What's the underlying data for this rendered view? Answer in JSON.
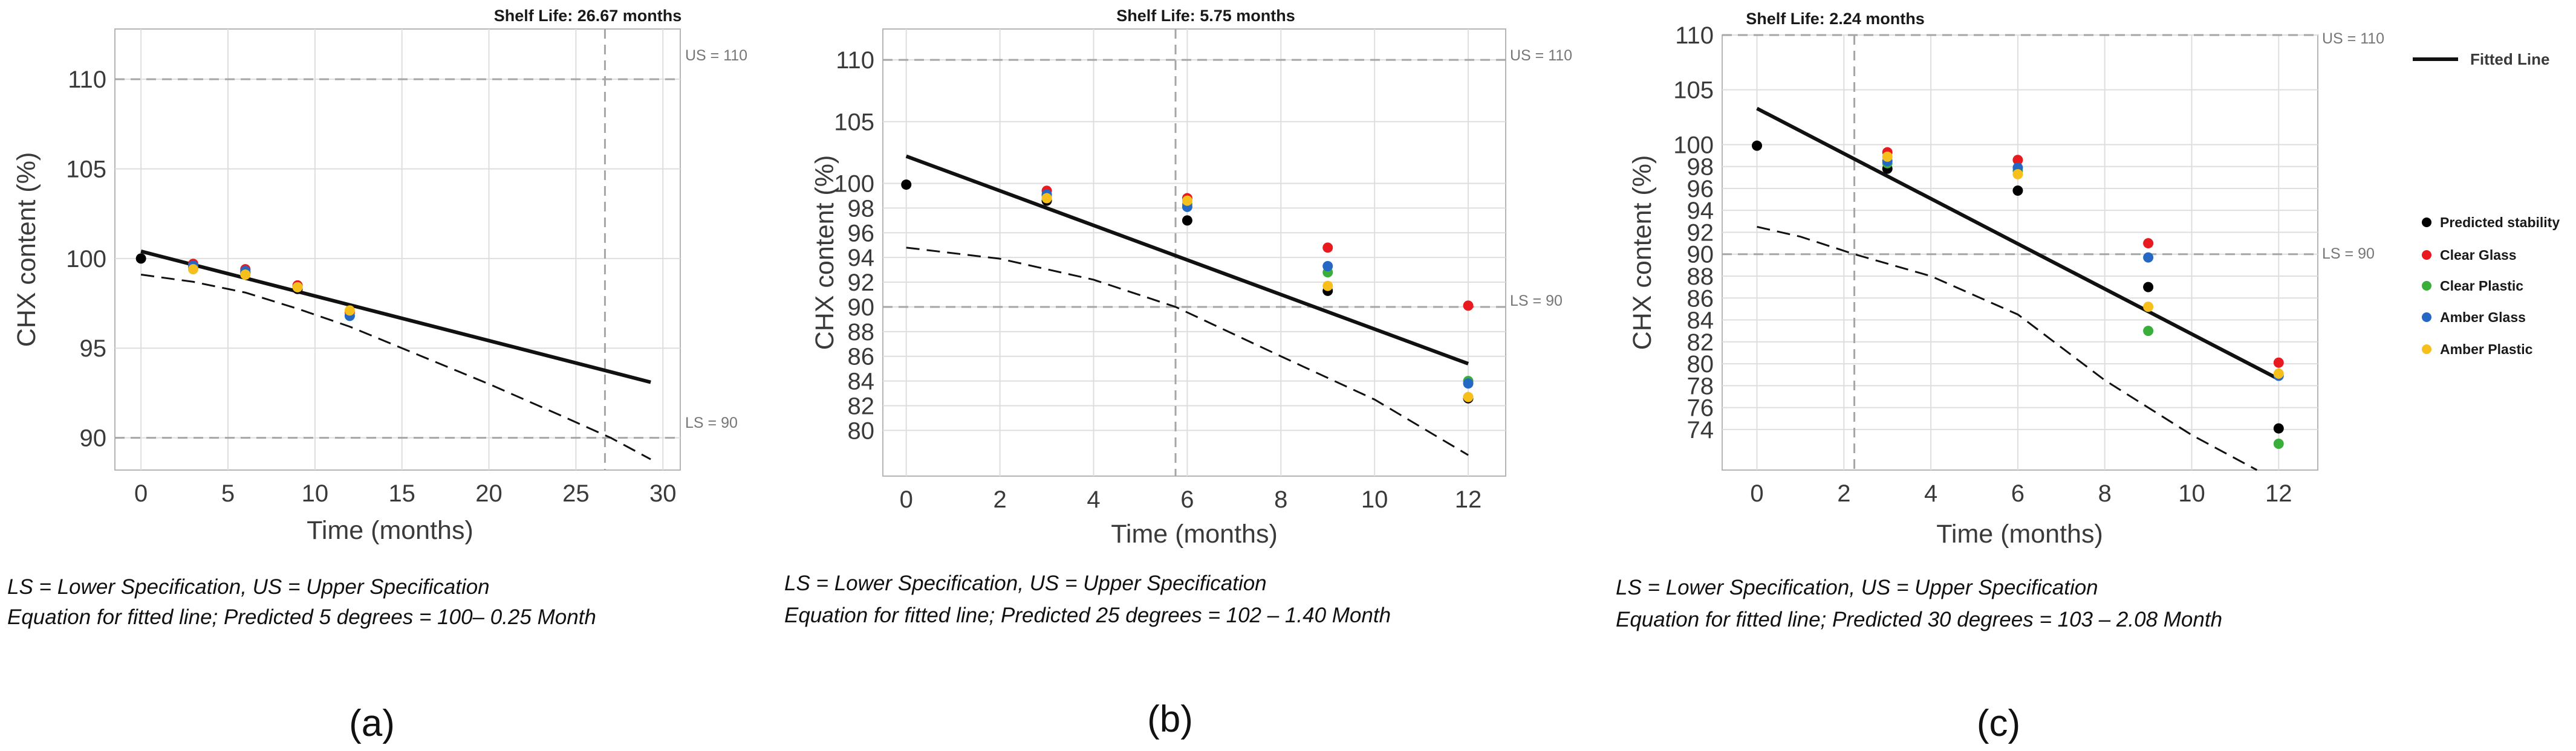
{
  "colors": {
    "predicted_stability": "#000000",
    "clear_glass": "#e8191f",
    "clear_plastic": "#3aae3a",
    "amber_glass": "#2468c4",
    "amber_plastic": "#f6bf1b",
    "grid": "#dedede",
    "spec": "#a6a6a6"
  },
  "legend": {
    "fitted_line": "Fitted Line",
    "items": [
      {
        "key": "predicted_stability",
        "label": "Predicted stability"
      },
      {
        "key": "clear_glass",
        "label": "Clear Glass"
      },
      {
        "key": "clear_plastic",
        "label": "Clear Plastic"
      },
      {
        "key": "amber_glass",
        "label": "Amber Glass"
      },
      {
        "key": "amber_plastic",
        "label": "Amber Plastic"
      }
    ]
  },
  "chart_data": [
    {
      "id": "a",
      "type": "scatter",
      "panel_label": "(a)",
      "title": "Shelf Life: 26.67 months",
      "xlabel": "Time (months)",
      "ylabel": "CHX content (%)",
      "xlim": [
        -1.5,
        31
      ],
      "ylim": [
        88.2,
        112.8
      ],
      "xticks": [
        0,
        5,
        10,
        15,
        20,
        25,
        30
      ],
      "yticks": [
        90,
        95,
        100,
        105,
        110
      ],
      "us_label": "US = 110",
      "ls_label": "LS = 90",
      "us": 110,
      "ls": 90,
      "shelf_life": 26.67,
      "fitted_line": {
        "x": [
          0,
          29.3
        ],
        "y": [
          100.4,
          93.1
        ]
      },
      "confidence_bound": {
        "x": [
          0,
          3,
          6,
          9,
          12,
          16,
          20,
          24,
          27,
          29.3
        ],
        "y": [
          99.1,
          98.7,
          98.1,
          97.2,
          96.2,
          94.6,
          93.0,
          91.3,
          90.0,
          88.8
        ]
      },
      "series": [
        {
          "name": "Predicted stability",
          "key": "predicted_stability",
          "x": [
            0,
            3,
            6,
            9
          ],
          "y": [
            100.0,
            99.5,
            99.2,
            98.3
          ]
        },
        {
          "name": "Clear Glass",
          "key": "clear_glass",
          "x": [
            3,
            6,
            9,
            12
          ],
          "y": [
            99.7,
            99.4,
            98.5,
            97.0
          ]
        },
        {
          "name": "Clear Plastic",
          "key": "clear_plastic",
          "x": [
            3,
            6,
            9,
            12
          ],
          "y": [
            99.5,
            99.2,
            98.4,
            96.8
          ]
        },
        {
          "name": "Amber Glass",
          "key": "amber_glass",
          "x": [
            3,
            6,
            9,
            12
          ],
          "y": [
            99.6,
            99.3,
            98.4,
            96.8
          ]
        },
        {
          "name": "Amber Plastic",
          "key": "amber_plastic",
          "x": [
            3,
            6,
            9,
            12
          ],
          "y": [
            99.4,
            99.1,
            98.4,
            97.1
          ]
        }
      ],
      "caption_line1": "LS = Lower Specification, US = Upper Specification",
      "caption_line2": "Equation for fitted line; Predicted 5 degrees = 100– 0.25 Month"
    },
    {
      "id": "b",
      "type": "scatter",
      "panel_label": "(b)",
      "title": "Shelf Life: 5.75 months",
      "xlabel": "Time (months)",
      "ylabel": "CHX content (%)",
      "xlim": [
        -0.5,
        12.8
      ],
      "ylim": [
        76.3,
        112.5
      ],
      "xticks": [
        0,
        2,
        4,
        6,
        8,
        10,
        12
      ],
      "yticks": [
        80,
        82,
        84,
        86,
        88,
        90,
        92,
        94,
        96,
        98,
        100,
        105,
        110
      ],
      "us_label": "US = 110",
      "ls_label": "LS = 90",
      "us": 110,
      "ls": 90,
      "shelf_life": 5.75,
      "fitted_line": {
        "x": [
          0,
          12
        ],
        "y": [
          102.2,
          85.4
        ]
      },
      "confidence_bound": {
        "x": [
          0,
          2,
          4,
          5.75,
          8,
          10,
          12
        ],
        "y": [
          94.8,
          93.9,
          92.2,
          90.0,
          86.0,
          82.5,
          78.0
        ]
      },
      "series": [
        {
          "name": "Predicted stability",
          "key": "predicted_stability",
          "x": [
            0,
            3,
            6,
            9,
            12
          ],
          "y": [
            99.9,
            98.6,
            97.0,
            91.3,
            82.6
          ]
        },
        {
          "name": "Clear Glass",
          "key": "clear_glass",
          "x": [
            3,
            6,
            9,
            12
          ],
          "y": [
            99.4,
            98.8,
            94.8,
            90.1
          ]
        },
        {
          "name": "Clear Plastic",
          "key": "clear_plastic",
          "x": [
            3,
            6,
            9,
            12
          ],
          "y": [
            99.0,
            98.3,
            92.8,
            84.0
          ]
        },
        {
          "name": "Amber Glass",
          "key": "amber_glass",
          "x": [
            3,
            6,
            9,
            12
          ],
          "y": [
            99.1,
            98.1,
            93.3,
            83.8
          ]
        },
        {
          "name": "Amber Plastic",
          "key": "amber_plastic",
          "x": [
            3,
            6,
            9,
            12
          ],
          "y": [
            98.8,
            98.6,
            91.7,
            82.7
          ]
        }
      ],
      "caption_line1": "LS = Lower Specification, US = Upper Specification",
      "caption_line2": "Equation for fitted line; Predicted 25 degrees = 102 – 1.40 Month"
    },
    {
      "id": "c",
      "type": "scatter",
      "panel_label": "(c)",
      "title": "Shelf Life: 2.24 months",
      "xlabel": "Time (months)",
      "ylabel": "CHX content (%)",
      "xlim": [
        -0.8,
        12.9
      ],
      "ylim": [
        70.3,
        110.0
      ],
      "xticks": [
        0,
        2,
        4,
        6,
        8,
        10,
        12
      ],
      "yticks": [
        74,
        76,
        78,
        80,
        82,
        84,
        86,
        88,
        90,
        92,
        94,
        96,
        98,
        100,
        105,
        110
      ],
      "us_label": "US = 110",
      "ls_label": "LS = 90",
      "us": 110,
      "ls": 90,
      "shelf_life": 2.24,
      "fitted_line": {
        "x": [
          0,
          12
        ],
        "y": [
          103.3,
          78.6
        ]
      },
      "confidence_bound": {
        "x": [
          0,
          1,
          2.24,
          4,
          6,
          8,
          10,
          11.5
        ],
        "y": [
          92.5,
          91.6,
          90.0,
          88.0,
          84.5,
          78.5,
          73.5,
          70.3
        ]
      },
      "series": [
        {
          "name": "Predicted stability",
          "key": "predicted_stability",
          "x": [
            0,
            3,
            6,
            9,
            12
          ],
          "y": [
            99.9,
            97.8,
            95.8,
            87.0,
            74.1
          ]
        },
        {
          "name": "Clear Glass",
          "key": "clear_glass",
          "x": [
            3,
            6,
            9,
            12
          ],
          "y": [
            99.3,
            98.6,
            91.0,
            80.1
          ]
        },
        {
          "name": "Clear Plastic",
          "key": "clear_plastic",
          "x": [
            3,
            6,
            9,
            12
          ],
          "y": [
            98.3,
            97.6,
            83.0,
            72.7
          ]
        },
        {
          "name": "Amber Glass",
          "key": "amber_glass",
          "x": [
            3,
            6,
            9,
            12
          ],
          "y": [
            98.5,
            97.9,
            89.7,
            78.9
          ]
        },
        {
          "name": "Amber Plastic",
          "key": "amber_plastic",
          "x": [
            3,
            6,
            9,
            12
          ],
          "y": [
            98.9,
            97.3,
            85.2,
            79.1
          ]
        }
      ],
      "caption_line1": "LS = Lower Specification, US = Upper Specification",
      "caption_line2": "Equation for fitted line; Predicted 30 degrees = 103 – 2.08 Month"
    }
  ]
}
